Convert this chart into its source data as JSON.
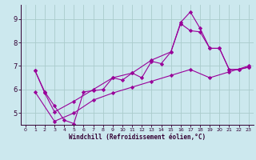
{
  "xlabel": "Windchill (Refroidissement éolien,°C)",
  "bg_color": "#cce8ee",
  "grid_color": "#aacccc",
  "line_color": "#990099",
  "xlim": [
    -0.5,
    23.5
  ],
  "ylim": [
    4.5,
    9.6
  ],
  "xticks": [
    0,
    1,
    2,
    3,
    4,
    5,
    6,
    7,
    8,
    9,
    10,
    11,
    12,
    13,
    14,
    15,
    16,
    17,
    18,
    19,
    20,
    21,
    22,
    23
  ],
  "yticks": [
    5,
    6,
    7,
    8,
    9
  ],
  "line1_x": [
    1,
    2,
    3,
    4,
    5,
    6,
    7,
    8,
    9,
    10,
    11,
    12,
    13,
    14,
    15,
    16,
    17,
    18,
    19,
    20,
    21,
    22,
    23
  ],
  "line1_y": [
    6.8,
    5.9,
    5.3,
    4.7,
    4.55,
    5.9,
    5.95,
    6.0,
    6.5,
    6.4,
    6.7,
    6.5,
    7.2,
    7.1,
    7.6,
    8.85,
    9.3,
    8.6,
    7.75,
    7.75,
    6.85,
    6.85,
    6.95
  ],
  "line2_x": [
    1,
    2,
    3,
    5,
    7,
    9,
    11,
    13,
    15,
    16,
    17,
    18,
    19,
    20,
    21,
    22,
    23
  ],
  "line2_y": [
    6.8,
    5.85,
    5.05,
    5.5,
    6.0,
    6.5,
    6.7,
    7.25,
    7.6,
    8.8,
    8.5,
    8.45,
    7.75,
    7.75,
    6.85,
    6.85,
    6.95
  ],
  "line3_x": [
    1,
    3,
    5,
    7,
    9,
    11,
    13,
    15,
    17,
    19,
    21,
    23
  ],
  "line3_y": [
    5.9,
    4.65,
    5.0,
    5.55,
    5.85,
    6.1,
    6.35,
    6.6,
    6.85,
    6.5,
    6.75,
    7.0
  ]
}
